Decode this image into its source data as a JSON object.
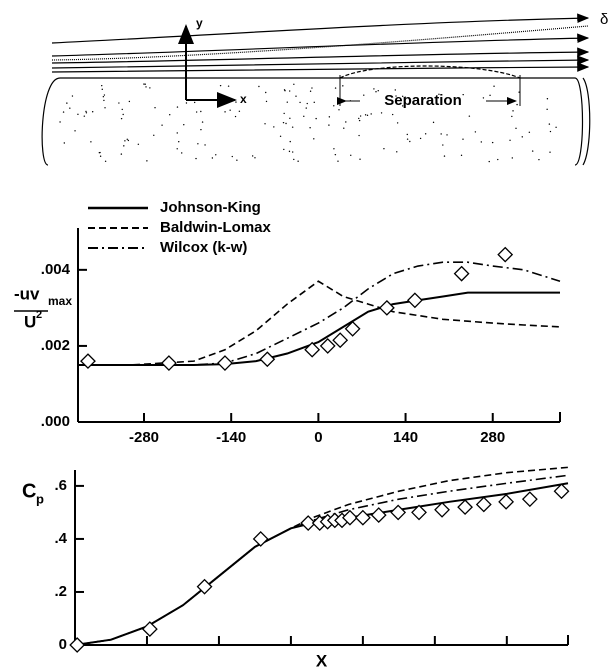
{
  "schematic": {
    "labels": {
      "y": "y",
      "x": "x",
      "separation": "Separation",
      "delta": "δ"
    }
  },
  "chart_data": [
    {
      "type": "line",
      "ylabel": {
        "numerator": "-uv",
        "subscript": "max",
        "denominator": "U",
        "superscript": "2"
      },
      "xlim": [
        -386,
        388
      ],
      "xticks": [
        -280,
        -140,
        0,
        140,
        280
      ],
      "ylim": [
        0,
        0.0051
      ],
      "yticks": [
        {
          "value": 0,
          "label": ".000"
        },
        {
          "value": 0.002,
          "label": ".002"
        },
        {
          "value": 0.004,
          "label": ".004"
        }
      ],
      "legend": "upper-left",
      "series": [
        {
          "name": "Johnson-King",
          "color": "#000000",
          "linestyle": "solid",
          "x": [
            -386,
            -300,
            -200,
            -150,
            -100,
            -50,
            0,
            40,
            80,
            120,
            160,
            200,
            240,
            280,
            330,
            388
          ],
          "values": [
            0.0015,
            0.0015,
            0.0015,
            0.00152,
            0.0016,
            0.0018,
            0.0021,
            0.0025,
            0.0029,
            0.0031,
            0.0032,
            0.0033,
            0.0034,
            0.0034,
            0.0034,
            0.0034
          ]
        },
        {
          "name": "Baldwin-Lomax",
          "color": "#000000",
          "linestyle": "dashed",
          "x": [
            -386,
            -300,
            -200,
            -150,
            -100,
            -50,
            0,
            40,
            80,
            120,
            160,
            200,
            240,
            280,
            330,
            388
          ],
          "values": [
            0.0015,
            0.0015,
            0.0016,
            0.0019,
            0.0024,
            0.0031,
            0.0037,
            0.0033,
            0.0031,
            0.0029,
            0.0028,
            0.0027,
            0.00265,
            0.0026,
            0.00255,
            0.0025
          ]
        },
        {
          "name": "Wilcox (k-w)",
          "color": "#000000",
          "linestyle": "dashdot",
          "x": [
            -386,
            -300,
            -200,
            -150,
            -100,
            -50,
            0,
            40,
            80,
            120,
            160,
            200,
            240,
            280,
            330,
            388
          ],
          "values": [
            0.0015,
            0.0015,
            0.0015,
            0.00155,
            0.0018,
            0.0022,
            0.0026,
            0.003,
            0.0035,
            0.0039,
            0.0041,
            0.0042,
            0.0042,
            0.0041,
            0.004,
            0.0037
          ]
        },
        {
          "color": "#000000",
          "linestyle": "none",
          "marker": "diamond",
          "x": [
            -370,
            -240,
            -150,
            -82,
            -10,
            15,
            35,
            55,
            110,
            155,
            230,
            300
          ],
          "values": [
            0.0016,
            0.00155,
            0.00155,
            0.00165,
            0.0019,
            0.002,
            0.00215,
            0.00245,
            0.003,
            0.0032,
            0.0039,
            0.0044
          ]
        }
      ]
    },
    {
      "type": "line",
      "xlabel": "X",
      "ylabel": {
        "text": "C",
        "subscript": "p"
      },
      "xlim": [
        0,
        6.85
      ],
      "xticks": [
        0,
        1,
        2,
        3,
        4,
        5,
        6
      ],
      "xtick_labels": false,
      "ylim": [
        0,
        0.66
      ],
      "yticks": [
        0,
        {
          "value": 0.2,
          "label": ".2"
        },
        {
          "value": 0.4,
          "label": ".4"
        },
        {
          "value": 0.6,
          "label": ".6"
        }
      ],
      "series": [
        {
          "color": "#000000",
          "linestyle": "solid",
          "x": [
            0,
            0.5,
            1,
            1.5,
            2,
            2.5,
            3,
            3.3,
            3.8,
            4.5,
            5.2,
            6,
            6.85
          ],
          "values": [
            0,
            0.02,
            0.07,
            0.15,
            0.26,
            0.37,
            0.44,
            0.46,
            0.48,
            0.51,
            0.54,
            0.57,
            0.61
          ]
        },
        {
          "color": "#000000",
          "linestyle": "dashed",
          "x": [
            0,
            0.5,
            1,
            1.5,
            2,
            2.5,
            3,
            3.3,
            3.8,
            4.5,
            5.2,
            6,
            6.85
          ],
          "values": [
            0,
            0.02,
            0.07,
            0.15,
            0.26,
            0.37,
            0.44,
            0.48,
            0.53,
            0.58,
            0.62,
            0.65,
            0.67
          ]
        },
        {
          "color": "#000000",
          "linestyle": "dashdot",
          "x": [
            0,
            0.5,
            1,
            1.5,
            2,
            2.5,
            3,
            3.3,
            3.8,
            4.5,
            5.2,
            6,
            6.85
          ],
          "values": [
            0,
            0.02,
            0.07,
            0.15,
            0.26,
            0.37,
            0.44,
            0.47,
            0.51,
            0.55,
            0.58,
            0.61,
            0.64
          ]
        },
        {
          "color": "#000000",
          "linestyle": "none",
          "marker": "diamond",
          "x": [
            0.03,
            1.04,
            1.8,
            2.58,
            3.24,
            3.4,
            3.51,
            3.61,
            3.71,
            3.82,
            4.0,
            4.22,
            4.49,
            4.78,
            5.1,
            5.42,
            5.68,
            5.99,
            6.32,
            6.76
          ],
          "values": [
            0,
            0.06,
            0.22,
            0.4,
            0.46,
            0.46,
            0.465,
            0.47,
            0.47,
            0.48,
            0.48,
            0.49,
            0.5,
            0.5,
            0.51,
            0.52,
            0.53,
            0.54,
            0.55,
            0.58
          ]
        }
      ]
    }
  ]
}
